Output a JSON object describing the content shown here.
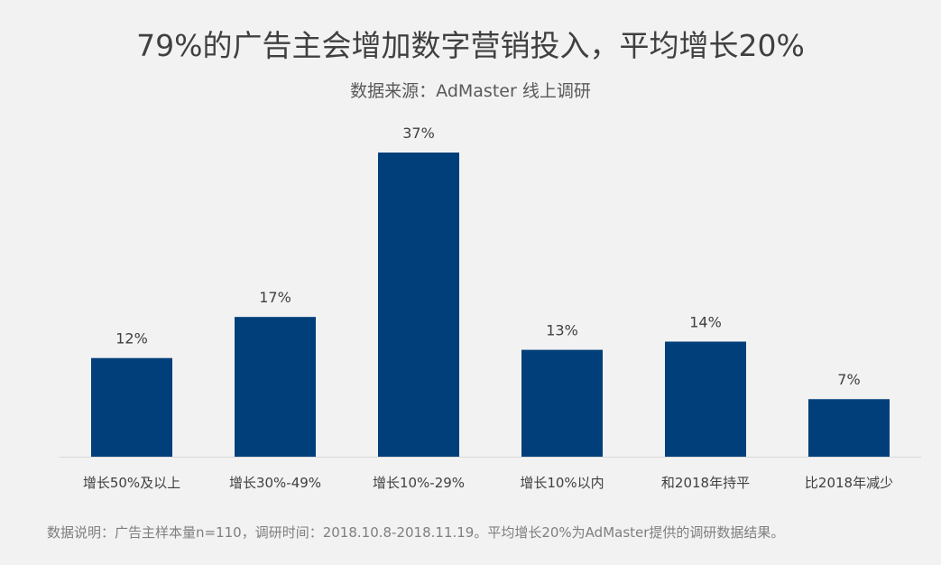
{
  "chart_data": {
    "type": "bar",
    "title": "79%的广告主会增加数字营销投入，平均增长20%",
    "subtitle": "数据来源：AdMaster 线上调研",
    "categories": [
      "增长50%及以上",
      "增长30%-49%",
      "增长10%-29%",
      "增长10%以内",
      "和2018年持平",
      "比2018年减少"
    ],
    "values": [
      12,
      17,
      37,
      13,
      14,
      7
    ],
    "data_labels": [
      "12%",
      "17%",
      "37%",
      "13%",
      "14%",
      "7%"
    ],
    "xlabel": "",
    "ylabel": "",
    "ylim": [
      0,
      37
    ],
    "grid": false,
    "bar_color": "#003f7a",
    "footnote": "数据说明：广告主样本量n=110，调研时间：2018.10.8-2018.11.19。平均增长20%为AdMaster提供的调研数据结果。"
  }
}
